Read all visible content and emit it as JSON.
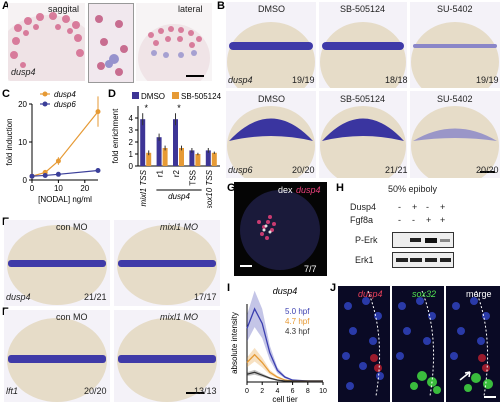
{
  "panels": {
    "A": {
      "letter": "A",
      "left_title": "saggital",
      "right_title": "lateral",
      "gene": "dusp4"
    },
    "B": {
      "letter": "B",
      "top": [
        {
          "cond": "DMSO",
          "gene": "dusp4",
          "count": "19/19"
        },
        {
          "cond": "SB-505124",
          "count": "18/18"
        },
        {
          "cond": "SU-5402",
          "count": "19/19"
        }
      ],
      "bottom": [
        {
          "cond": "DMSO",
          "gene": "dusp6",
          "count": "20/20"
        },
        {
          "cond": "SB-505124",
          "count": "21/21"
        },
        {
          "cond": "SU-5402",
          "count": "20/20"
        }
      ]
    },
    "E": {
      "letter": "E",
      "left": "con MO",
      "right": "mixl1 MO",
      "gene": "dusp4",
      "left_count": "21/21",
      "right_count": "17/17"
    },
    "F": {
      "letter": "F",
      "left": "con MO",
      "right": "mixl1 MO",
      "gene": "lft1",
      "left_count": "20/20",
      "right_count": "13/13"
    },
    "G": {
      "letter": "G",
      "dex": "dex",
      "gene": "dusp4",
      "count": "7/7"
    },
    "H": {
      "letter": "H",
      "title": "50% epiboly",
      "row1": "Dusp4",
      "row2": "Fgf8a",
      "signs1": [
        "-",
        "+",
        "-",
        "+"
      ],
      "signs2": [
        "-",
        "-",
        "+",
        "+"
      ],
      "band1": "P-Erk",
      "band2": "Erk1"
    },
    "J": {
      "letter": "J",
      "c1": "dusp4",
      "c2": "sox32",
      "c3": "merge"
    }
  },
  "chart_data": [
    {
      "id": "C",
      "type": "line",
      "ylabel": "fold induction",
      "xlabel": "[NODAL] ng/ml",
      "xlim": [
        0,
        25
      ],
      "ylim": [
        0,
        20
      ],
      "xticks": [
        0,
        10,
        20
      ],
      "yticks": [
        0,
        10,
        20
      ],
      "series": [
        {
          "name": "dusp4",
          "color": "#e69a35",
          "x": [
            0,
            5,
            10,
            25
          ],
          "y": [
            1,
            2,
            5,
            18
          ],
          "err": [
            0,
            0.5,
            1,
            4
          ]
        },
        {
          "name": "dusp6",
          "color": "#3b3f9a",
          "x": [
            0,
            5,
            10,
            25
          ],
          "y": [
            1,
            1.2,
            1.5,
            2.5
          ],
          "err": [
            0,
            0.2,
            0.3,
            0.5
          ]
        }
      ]
    },
    {
      "id": "D",
      "type": "bar",
      "ylabel": "fold enrichment",
      "ylim": [
        0,
        5
      ],
      "yticks": [
        0,
        1,
        2,
        3,
        4
      ],
      "categories": [
        "mixl1 TSS",
        "r1",
        "r2",
        "TSS",
        "sox10 TSS"
      ],
      "group_label": "dusp4",
      "series": [
        {
          "name": "DMSO",
          "color": "#3d3596",
          "values": [
            3.9,
            2.4,
            3.9,
            1.3,
            1.3
          ],
          "err": [
            0.5,
            0.3,
            0.5,
            0.2,
            0.2
          ]
        },
        {
          "name": "SB-505124",
          "color": "#e69a35",
          "values": [
            1.1,
            1.5,
            1.5,
            1.0,
            1.1
          ],
          "err": [
            0.2,
            0.2,
            0.2,
            0.1,
            0.1
          ]
        }
      ],
      "sig": [
        "*",
        "",
        "*",
        "",
        ""
      ]
    },
    {
      "id": "I",
      "type": "line",
      "title": "dusp4",
      "ylabel": "absolute intensity",
      "xlabel": "cell tier",
      "xlim": [
        0,
        10
      ],
      "xticks": [
        0,
        2,
        4,
        6,
        8,
        10
      ],
      "series": [
        {
          "name": "5.0 hpf",
          "color": "#3b3fb0",
          "x": [
            0,
            1,
            2,
            3,
            4,
            5,
            6,
            8,
            10
          ],
          "y": [
            0.55,
            0.75,
            0.6,
            0.3,
            0.12,
            0.05,
            0.02,
            0.01,
            0.01
          ]
        },
        {
          "name": "4.7 hpf",
          "color": "#e69a35",
          "x": [
            0,
            1,
            2,
            3,
            4,
            5,
            6,
            8,
            10
          ],
          "y": [
            0.2,
            0.28,
            0.2,
            0.1,
            0.05,
            0.02,
            0.01,
            0.01,
            0.01
          ]
        },
        {
          "name": "4.3 hpf",
          "color": "#333333",
          "x": [
            0,
            1,
            2,
            3,
            4,
            5,
            6,
            8,
            10
          ],
          "y": [
            0.08,
            0.1,
            0.07,
            0.04,
            0.02,
            0.01,
            0.01,
            0.01,
            0.01
          ]
        }
      ]
    }
  ],
  "letters": {
    "C": "C",
    "D": "D",
    "I": "I"
  }
}
